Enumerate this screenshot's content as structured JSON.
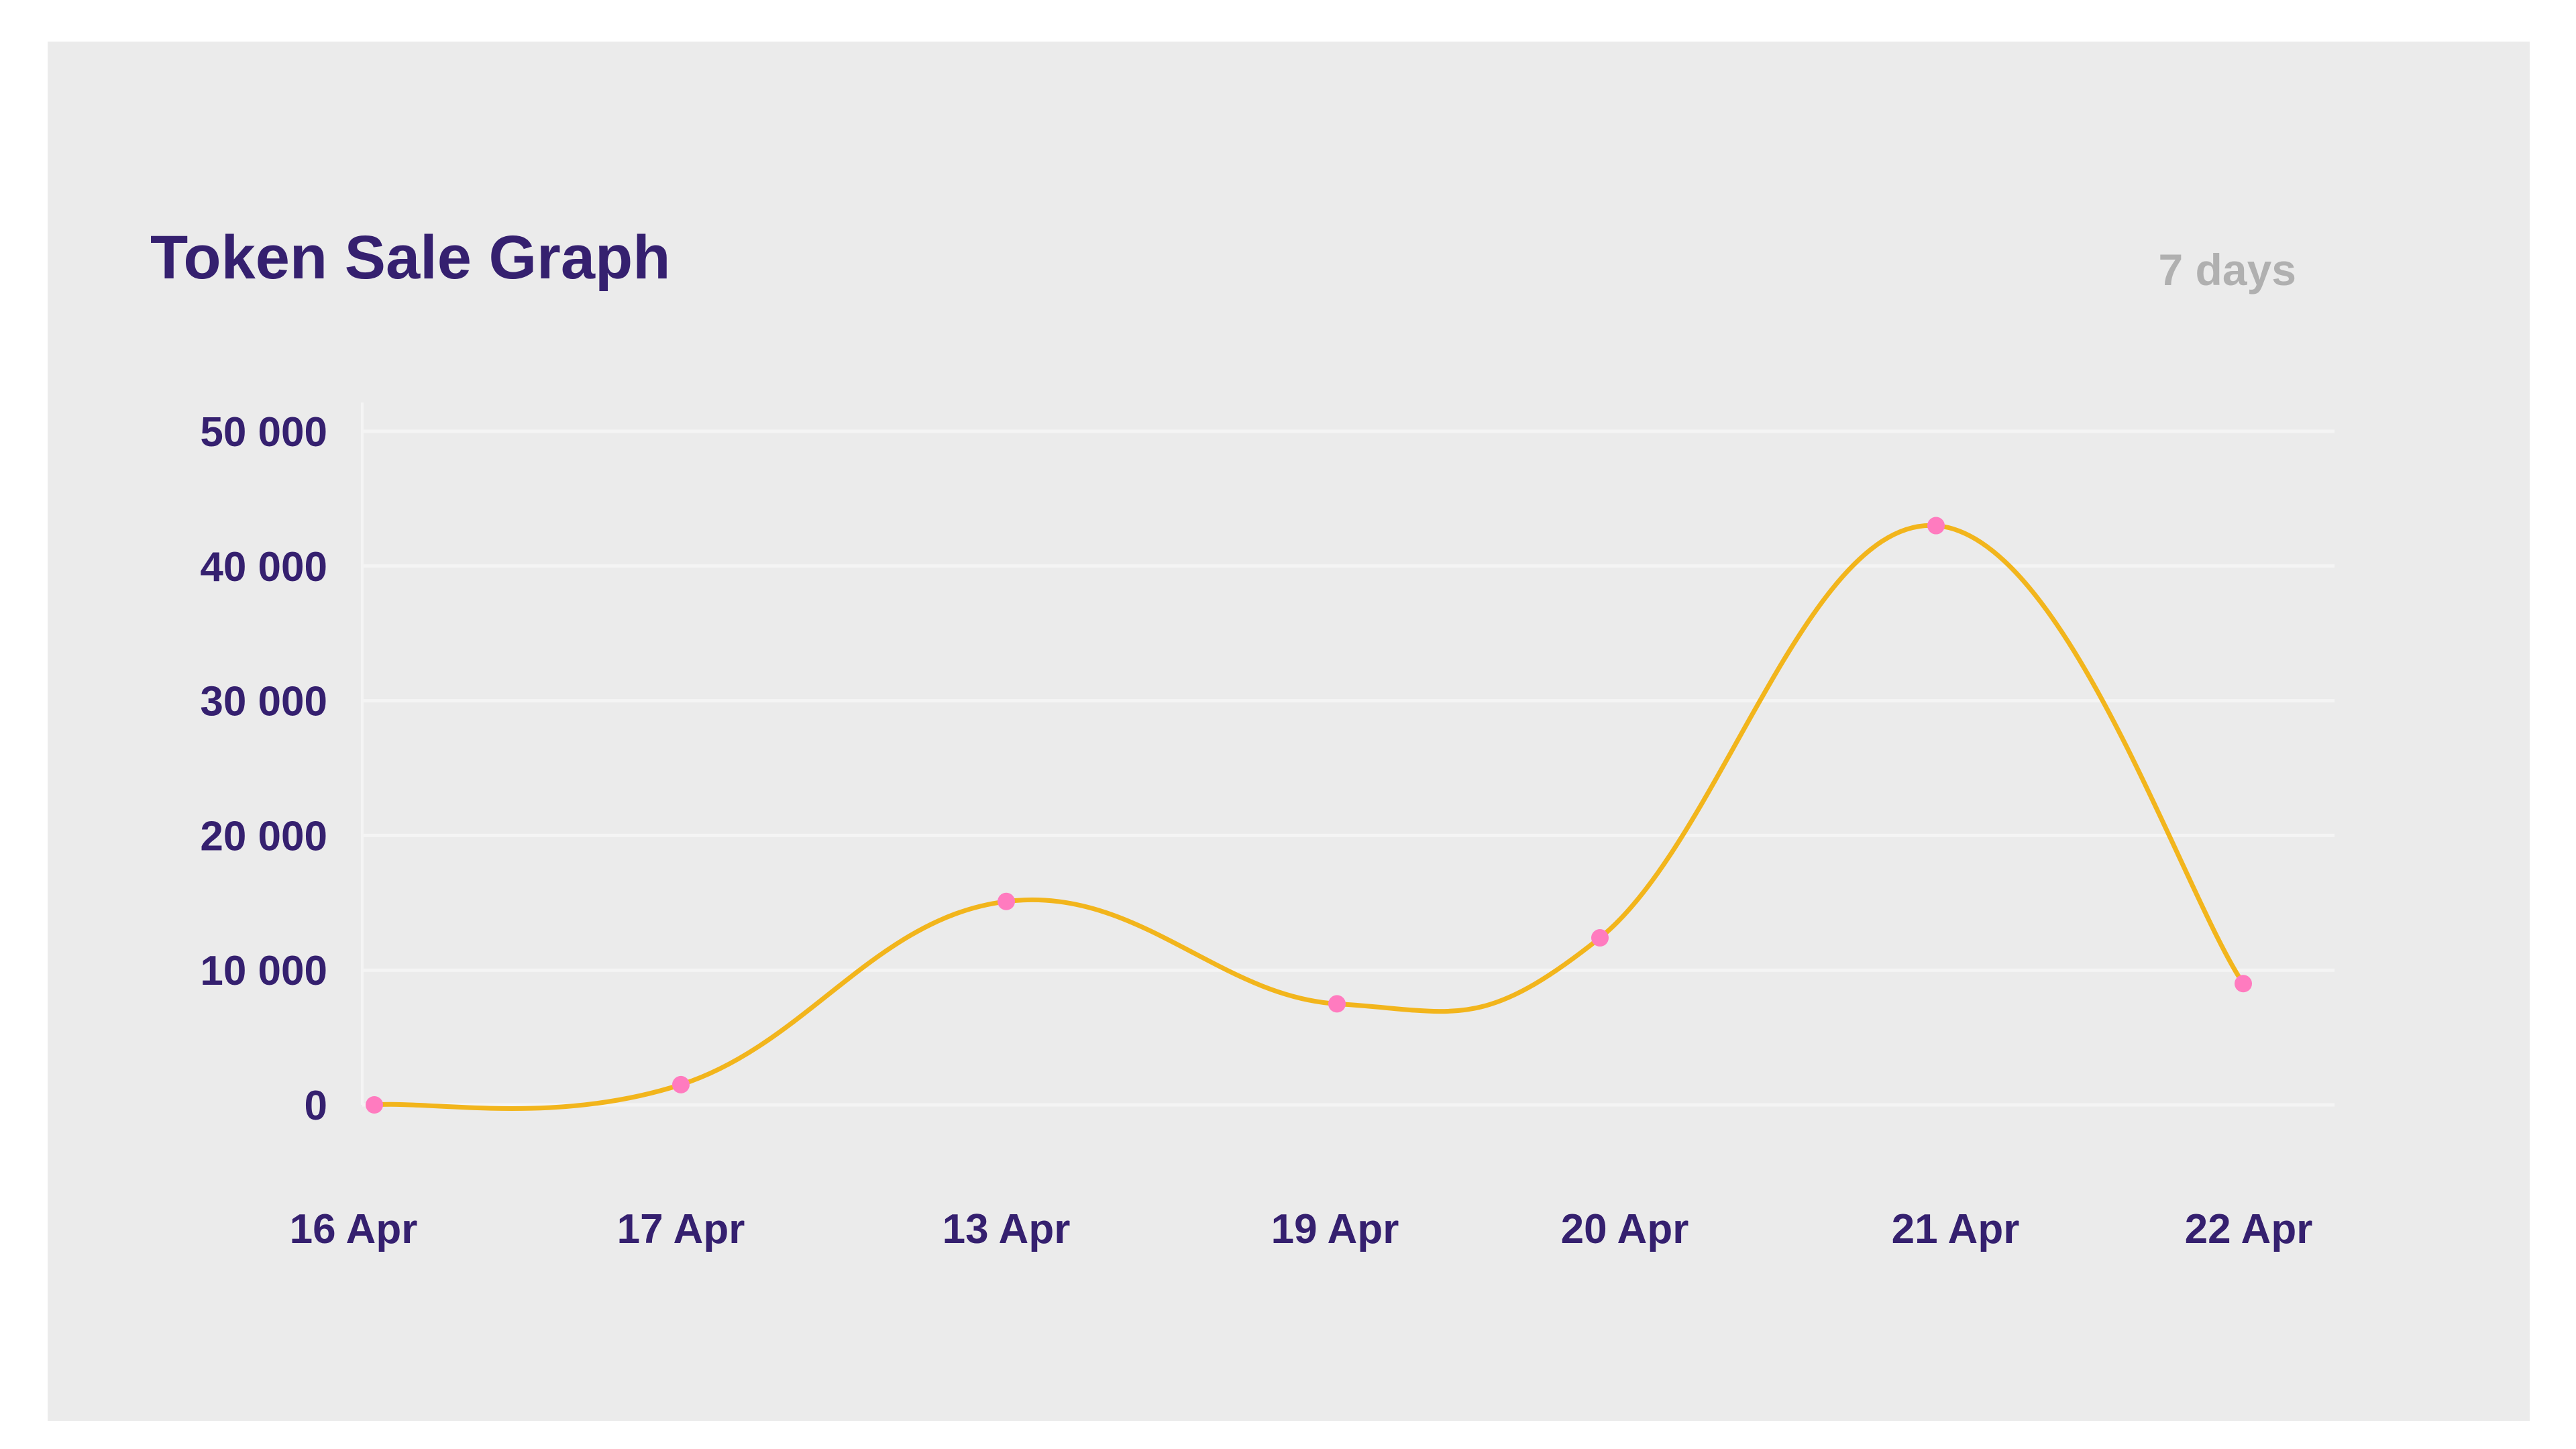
{
  "title": "Token Sale Graph",
  "period_label": "7 days",
  "colors": {
    "background": "#ebebeb",
    "text": "#35206f",
    "muted": "#b0b0b0",
    "line": "#f2b51c",
    "points": "#ff7bbf",
    "grid": "#f4f4f4"
  },
  "chart_data": {
    "type": "line",
    "title": "Token Sale Graph",
    "xlabel": "",
    "ylabel": "",
    "categories": [
      "16 Apr",
      "17 Apr",
      "13 Apr",
      "19 Apr",
      "20 Apr",
      "21 Apr",
      "22 Apr"
    ],
    "series": [
      {
        "values": [
          0,
          1500,
          15100,
          7500,
          12400,
          43000,
          9000
        ]
      }
    ],
    "ylim": [
      0,
      50000
    ],
    "yticks": [
      0,
      10000,
      20000,
      30000,
      40000,
      50000
    ],
    "ytick_labels": [
      "0",
      "10 000",
      "20 000",
      "30 000",
      "40 000",
      "50 000"
    ],
    "grid": true,
    "smooth": true
  }
}
